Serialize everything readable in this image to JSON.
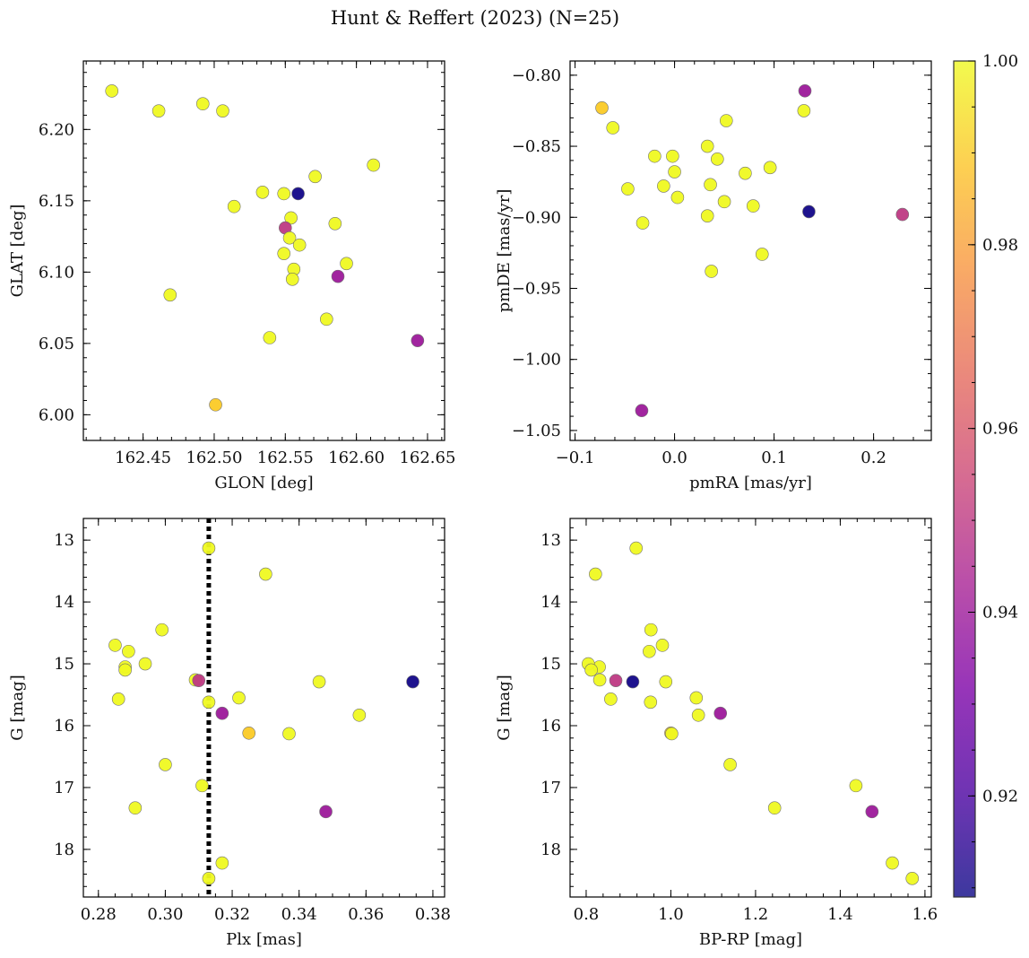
{
  "chart_data": {
    "title": "Hunt & Reffert (2023) (N=25)",
    "type": "scatter",
    "colorbar": {
      "min": 0.909,
      "max": 1.0,
      "ticks": [
        0.92,
        0.94,
        0.96,
        0.98,
        1.0
      ],
      "tick_labels": [
        "0.92",
        "0.94",
        "0.96",
        "0.98",
        "1.00"
      ],
      "colormap": "plasma"
    },
    "stars": [
      {
        "glon": 162.428,
        "glat": 6.227,
        "pmra": -0.062,
        "pmde": -0.837,
        "plx": 0.285,
        "g": 14.7,
        "bprp": 0.98,
        "p": 1.0
      },
      {
        "glon": 162.461,
        "glat": 6.213,
        "pmra": -0.047,
        "pmde": -0.88,
        "plx": 0.299,
        "g": 14.45,
        "bprp": 0.953,
        "p": 1.0
      },
      {
        "glon": 162.492,
        "glat": 6.218,
        "pmra": -0.02,
        "pmde": -0.857,
        "plx": 0.288,
        "g": 15.05,
        "bprp": 0.831,
        "p": 1.0
      },
      {
        "glon": 162.506,
        "glat": 6.213,
        "pmra": -0.002,
        "pmde": -0.857,
        "plx": 0.289,
        "g": 14.8,
        "bprp": 0.949,
        "p": 1.0
      },
      {
        "glon": 162.501,
        "glat": 6.007,
        "pmra": -0.073,
        "pmde": -0.823,
        "plx": 0.325,
        "g": 16.12,
        "bprp": 1.0,
        "p": 0.99
      },
      {
        "glon": 162.469,
        "glat": 6.084,
        "pmra": -0.032,
        "pmde": -0.904,
        "plx": 0.3,
        "g": 16.63,
        "bprp": 1.14,
        "p": 1.0
      },
      {
        "glon": 162.514,
        "glat": 6.146,
        "pmra": 0.0,
        "pmde": -0.868,
        "plx": 0.294,
        "g": 15.0,
        "bprp": 0.805,
        "p": 1.0
      },
      {
        "glon": 162.534,
        "glat": 6.156,
        "pmra": 0.003,
        "pmde": -0.886,
        "plx": 0.286,
        "g": 15.57,
        "bprp": 0.858,
        "p": 1.0
      },
      {
        "glon": 162.549,
        "glat": 6.155,
        "pmra": -0.011,
        "pmde": -0.878,
        "plx": 0.288,
        "g": 15.1,
        "bprp": 0.812,
        "p": 1.0
      },
      {
        "glon": 162.559,
        "glat": 6.155,
        "pmra": 0.135,
        "pmde": -0.896,
        "plx": 0.374,
        "g": 15.29,
        "bprp": 0.91,
        "p": 0.91
      },
      {
        "glon": 162.554,
        "glat": 6.138,
        "pmra": 0.033,
        "pmde": -0.85,
        "plx": 0.309,
        "g": 15.26,
        "bprp": 0.832,
        "p": 1.0
      },
      {
        "glon": 162.55,
        "glat": 6.131,
        "pmra": 0.229,
        "pmde": -0.898,
        "plx": 0.31,
        "g": 15.27,
        "bprp": 0.87,
        "p": 0.95
      },
      {
        "glon": 162.553,
        "glat": 6.124,
        "pmra": 0.036,
        "pmde": -0.877,
        "plx": 0.313,
        "g": 15.62,
        "bprp": 0.952,
        "p": 1.0
      },
      {
        "glon": 162.56,
        "glat": 6.119,
        "pmra": 0.052,
        "pmde": -0.832,
        "plx": 0.313,
        "g": 13.13,
        "bprp": 0.918,
        "p": 1.0
      },
      {
        "glon": 162.549,
        "glat": 6.113,
        "pmra": 0.043,
        "pmde": -0.859,
        "plx": 0.33,
        "g": 13.55,
        "bprp": 0.822,
        "p": 1.0
      },
      {
        "glon": 162.571,
        "glat": 6.167,
        "pmra": 0.071,
        "pmde": -0.869,
        "plx": 0.322,
        "g": 15.55,
        "bprp": 1.06,
        "p": 1.0
      },
      {
        "glon": 162.585,
        "glat": 6.134,
        "pmra": 0.096,
        "pmde": -0.865,
        "plx": 0.346,
        "g": 15.29,
        "bprp": 0.988,
        "p": 1.0
      },
      {
        "glon": 162.556,
        "glat": 6.102,
        "pmra": 0.05,
        "pmde": -0.889,
        "plx": 0.337,
        "g": 16.13,
        "bprp": 1.002,
        "p": 1.0
      },
      {
        "glon": 162.555,
        "glat": 6.095,
        "pmra": 0.079,
        "pmde": -0.892,
        "plx": 0.358,
        "g": 15.83,
        "bprp": 1.065,
        "p": 1.0
      },
      {
        "glon": 162.587,
        "glat": 6.097,
        "pmra": 0.131,
        "pmde": -0.811,
        "plx": 0.317,
        "g": 15.8,
        "bprp": 1.117,
        "p": 0.94
      },
      {
        "glon": 162.593,
        "glat": 6.106,
        "pmra": 0.13,
        "pmde": -0.825,
        "plx": 0.291,
        "g": 17.33,
        "bprp": 1.245,
        "p": 1.0
      },
      {
        "glon": 162.612,
        "glat": 6.175,
        "pmra": 0.033,
        "pmde": -0.899,
        "plx": 0.311,
        "g": 16.97,
        "bprp": 1.437,
        "p": 1.0
      },
      {
        "glon": 162.579,
        "glat": 6.067,
        "pmra": 0.088,
        "pmde": -0.926,
        "plx": 0.317,
        "g": 18.22,
        "bprp": 1.523,
        "p": 1.0
      },
      {
        "glon": 162.539,
        "glat": 6.054,
        "pmra": 0.037,
        "pmde": -0.938,
        "plx": 0.313,
        "g": 18.47,
        "bprp": 1.57,
        "p": 1.0
      },
      {
        "glon": 162.643,
        "glat": 6.052,
        "pmra": -0.033,
        "pmde": -1.036,
        "plx": 0.348,
        "g": 17.39,
        "bprp": 1.475,
        "p": 0.94
      }
    ],
    "panels": [
      {
        "id": "glon-glat",
        "xfield": "glon",
        "yfield": "glat",
        "xlabel": "GLON [deg]",
        "ylabel": "GLAT [deg]",
        "xlim": [
          162.408,
          162.662
        ],
        "ylim": [
          5.982,
          6.248
        ],
        "xinvert": false,
        "yinvert": false,
        "xmajor": [
          162.45,
          162.5,
          162.55,
          162.6,
          162.65
        ],
        "xmajor_labels": [
          "162.45",
          "162.50",
          "162.55",
          "162.60",
          "162.65"
        ],
        "xminor_step": 0.01,
        "ymajor": [
          6.0,
          6.05,
          6.1,
          6.15,
          6.2
        ],
        "ymajor_labels": [
          "6.00",
          "6.05",
          "6.10",
          "6.15",
          "6.20"
        ],
        "yminor_step": 0.01
      },
      {
        "id": "pmra-pmde",
        "xfield": "pmra",
        "yfield": "pmde",
        "xlabel": "pmRA [mas/yr]",
        "ylabel": "pmDE [mas/yr]",
        "xlim": [
          -0.105,
          0.258
        ],
        "ylim": [
          -1.057,
          -0.79
        ],
        "xinvert": false,
        "yinvert": false,
        "xmajor": [
          -0.1,
          0.0,
          0.1,
          0.2
        ],
        "xmajor_labels": [
          "−0.1",
          "0.0",
          "0.1",
          "0.2"
        ],
        "xminor_step": 0.02,
        "ymajor": [
          -1.05,
          -1.0,
          -0.95,
          -0.9,
          -0.85,
          -0.8
        ],
        "ymajor_labels": [
          "−1.05",
          "−1.00",
          "−0.95",
          "−0.90",
          "−0.85",
          "−0.80"
        ],
        "yminor_step": 0.01
      },
      {
        "id": "plx-g",
        "xfield": "plx",
        "yfield": "g",
        "xlabel": "Plx [mas]",
        "ylabel": "G [mag]",
        "xlim": [
          0.2755,
          0.3835
        ],
        "ylim": [
          12.65,
          18.77
        ],
        "xinvert": false,
        "yinvert": true,
        "xmajor": [
          0.28,
          0.3,
          0.32,
          0.34,
          0.36,
          0.38
        ],
        "xmajor_labels": [
          "0.28",
          "0.30",
          "0.32",
          "0.34",
          "0.36",
          "0.38"
        ],
        "xminor_step": 0.005,
        "ymajor": [
          13,
          14,
          15,
          16,
          17,
          18
        ],
        "ymajor_labels": [
          "13",
          "14",
          "15",
          "16",
          "17",
          "18"
        ],
        "yminor_step": 0.2,
        "vline": 0.313
      },
      {
        "id": "bprp-g",
        "xfield": "bprp",
        "yfield": "g",
        "xlabel": "BP-RP [mag]",
        "ylabel": "G [mag]",
        "xlim": [
          0.762,
          1.615
        ],
        "ylim": [
          12.65,
          18.77
        ],
        "xinvert": false,
        "yinvert": true,
        "xmajor": [
          0.8,
          1.0,
          1.2,
          1.4,
          1.6
        ],
        "xmajor_labels": [
          "0.8",
          "1.0",
          "1.2",
          "1.4",
          "1.6"
        ],
        "xminor_step": 0.04,
        "ymajor": [
          13,
          14,
          15,
          16,
          17,
          18
        ],
        "ymajor_labels": [
          "13",
          "14",
          "15",
          "16",
          "17",
          "18"
        ],
        "yminor_step": 0.2
      }
    ]
  }
}
